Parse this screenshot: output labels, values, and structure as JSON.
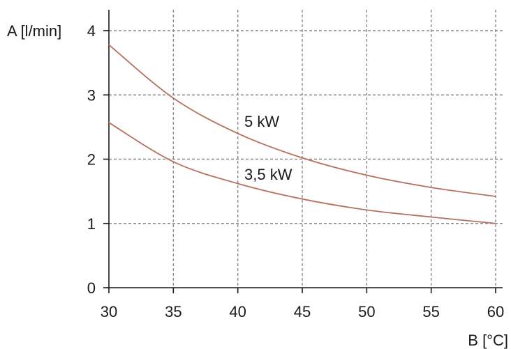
{
  "chart_data": {
    "type": "line",
    "title": "",
    "xlabel": "B [°C]",
    "ylabel": "A [l/min]",
    "xlim": [
      30,
      60
    ],
    "ylim": [
      0,
      4
    ],
    "x_ticks": [
      30,
      35,
      40,
      45,
      50,
      55,
      60
    ],
    "y_ticks": [
      0,
      1,
      2,
      3,
      4
    ],
    "grid": true,
    "legend": "none",
    "colors": {
      "series": "#b5705e",
      "grid": "#8a8a8a",
      "axis": "#1a1a1a",
      "text": "#1a1a1a"
    },
    "x": [
      30,
      35,
      40,
      45,
      50,
      55,
      60
    ],
    "series": [
      {
        "name": "5 kW",
        "values": [
          3.78,
          2.95,
          2.4,
          2.02,
          1.75,
          1.56,
          1.42
        ]
      },
      {
        "name": "3,5 kW",
        "values": [
          2.57,
          1.96,
          1.62,
          1.38,
          1.21,
          1.1,
          1.0
        ]
      }
    ]
  }
}
